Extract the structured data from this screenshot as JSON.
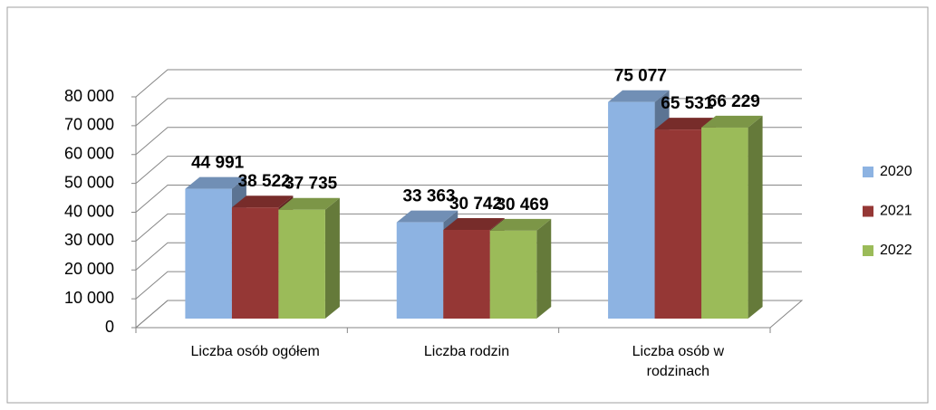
{
  "chart_data": {
    "type": "bar3d",
    "categories": [
      "Liczba osób ogółem",
      "Liczba rodzin",
      "Liczba osób w rodzinach"
    ],
    "series": [
      {
        "name": "2020",
        "color": "#8db3e2",
        "values": [
          44991,
          33363,
          75077
        ],
        "value_labels": [
          "44 991",
          "33 363",
          "75 077"
        ]
      },
      {
        "name": "2021",
        "color": "#953735",
        "values": [
          38522,
          30742,
          65531
        ],
        "value_labels": [
          "38 522",
          "30 742",
          "65 531"
        ]
      },
      {
        "name": "2022",
        "color": "#9bbb59",
        "values": [
          37735,
          30469,
          66229
        ],
        "value_labels": [
          "37 735",
          "30 469",
          "66 229"
        ]
      }
    ],
    "ylim": [
      0,
      80000
    ],
    "yticks": [
      0,
      {
        "value": 10000,
        "label": "10 000"
      },
      {
        "value": 20000,
        "label": "20 000"
      },
      {
        "value": 30000,
        "label": "30 000"
      },
      {
        "value": 40000,
        "label": "40 000"
      },
      {
        "value": 50000,
        "label": "50 000"
      },
      {
        "value": 60000,
        "label": "60 000"
      },
      {
        "value": 70000,
        "label": "70 000"
      },
      {
        "value": 80000,
        "label": "80 000"
      }
    ],
    "grid": true,
    "legend": "right"
  }
}
